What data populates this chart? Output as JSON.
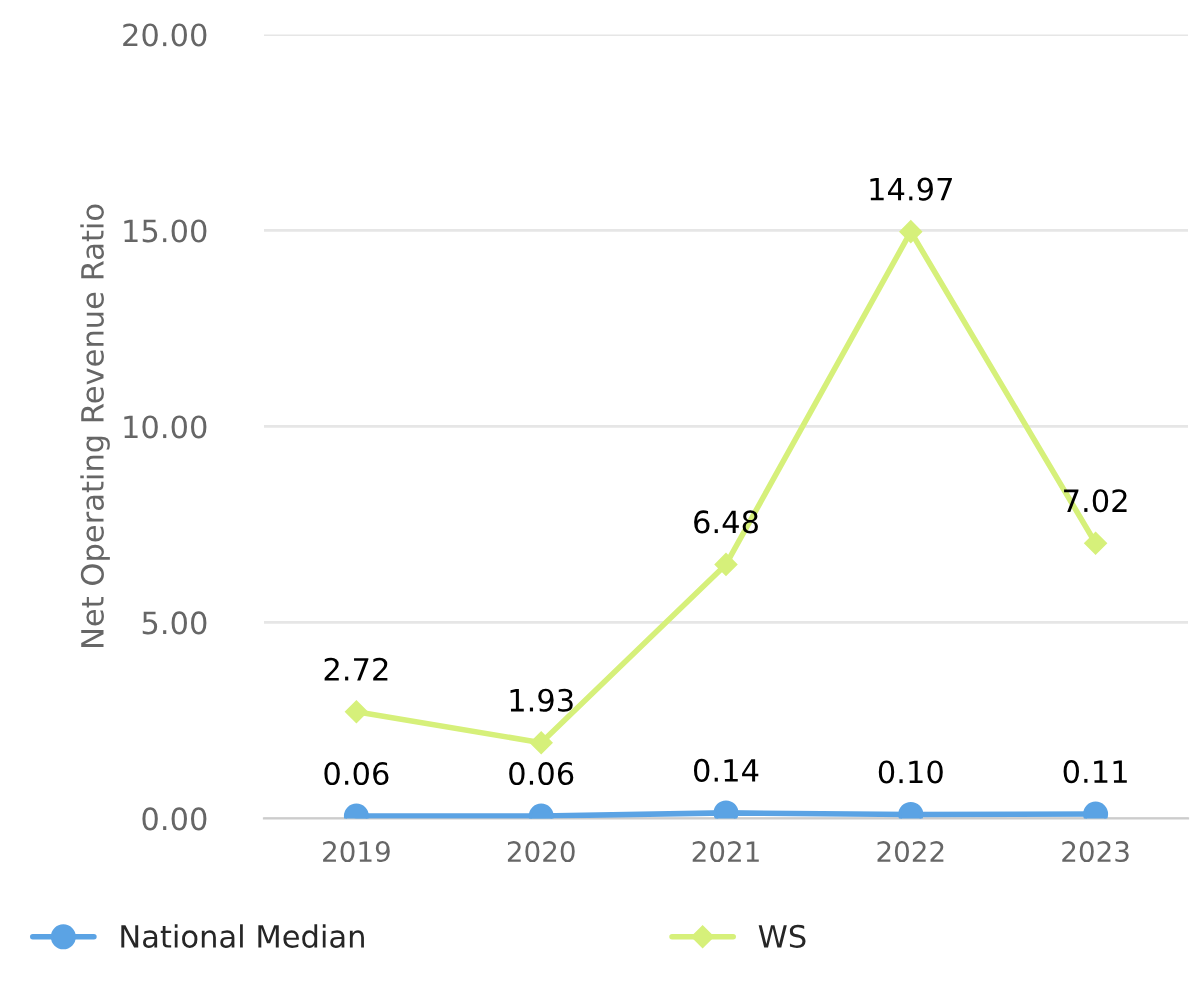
{
  "chart_data": {
    "type": "line",
    "ylabel": "Net Operating Revenue Ratio",
    "categories": [
      "2019",
      "2020",
      "2021",
      "2022",
      "2023"
    ],
    "series": [
      {
        "name": "National Median",
        "color": "#5ba3e4",
        "marker": "circle",
        "values": [
          0.06,
          0.06,
          0.14,
          0.1,
          0.11
        ],
        "value_labels": [
          "0.06",
          "0.06",
          "0.14",
          "0.10",
          "0.11"
        ]
      },
      {
        "name": "WS",
        "color": "#d6f07a",
        "marker": "diamond",
        "values": [
          2.72,
          1.93,
          6.48,
          14.97,
          7.02
        ],
        "value_labels": [
          "2.72",
          "1.93",
          "6.48",
          "14.97",
          "7.02"
        ]
      }
    ],
    "ylim": [
      0,
      20
    ],
    "yticks": [
      {
        "value": 0,
        "label": "0.00"
      },
      {
        "value": 5,
        "label": "5.00"
      },
      {
        "value": 10,
        "label": "10.00"
      },
      {
        "value": 15,
        "label": "15.00"
      },
      {
        "value": 20,
        "label": "20.00"
      }
    ],
    "grid": "y",
    "legend": "bottom",
    "line_style": "solid"
  }
}
